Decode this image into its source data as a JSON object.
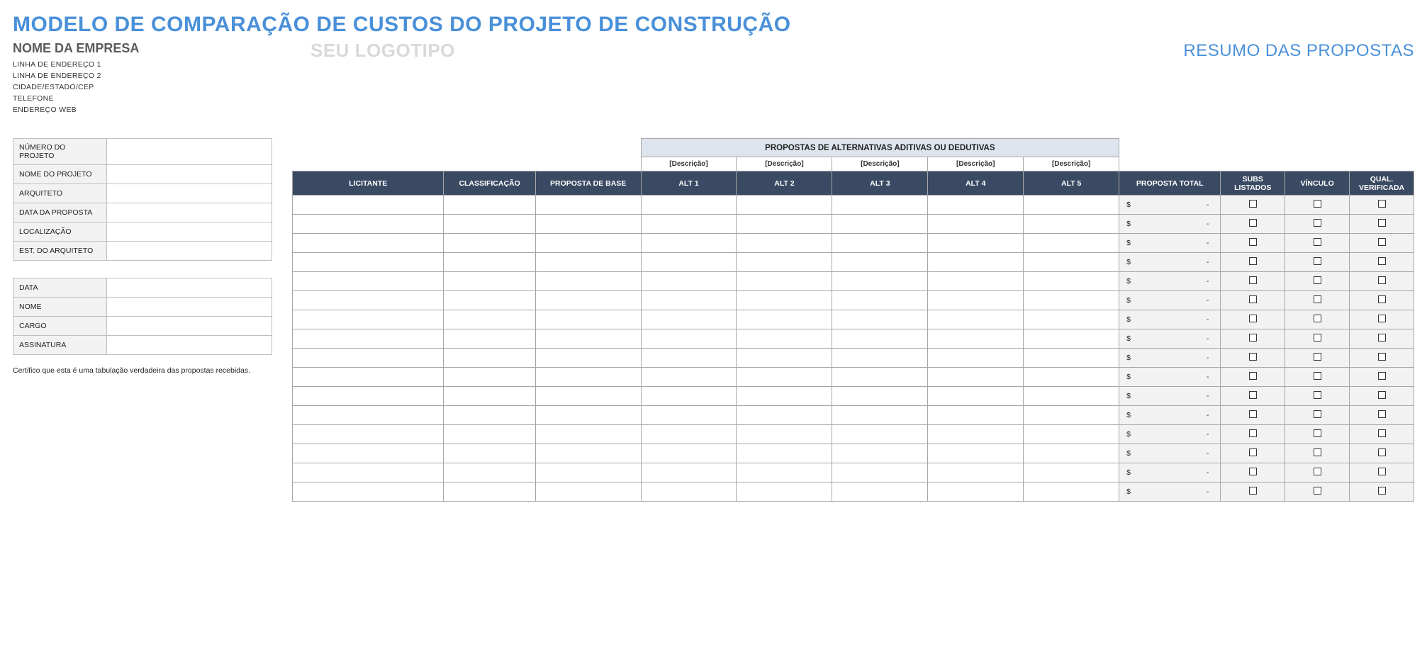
{
  "colors": {
    "accent": "#4a90d9",
    "header_dark": "#3b4a63",
    "alt_band": "#dde4ed",
    "grey_fill": "#f2f2f2",
    "logo_grey": "#d9d9d9",
    "border": "#a6a6a6"
  },
  "title": "MODELO DE COMPARAÇÃO DE CUSTOS DO PROJETO DE CONSTRUÇÃO",
  "company": {
    "name": "NOME DA EMPRESA",
    "addr1": "LINHA DE ENDEREÇO 1",
    "addr2": "LINHA DE ENDEREÇO 2",
    "city": "CIDADE/ESTADO/CEP",
    "phone": "TELEFONE",
    "web": "ENDEREÇO WEB"
  },
  "logo_placeholder": "SEU LOGOTIPO",
  "summary_title": "RESUMO DAS PROPOSTAS",
  "project_info": {
    "labels": {
      "num": "NÚMERO DO PROJETO",
      "name": "NOME DO PROJETO",
      "arch": "ARQUITETO",
      "date": "DATA DA PROPOSTA",
      "loc": "LOCALIZAÇÃO",
      "est": "EST. DO ARQUITETO"
    },
    "values": {
      "num": "",
      "name": "",
      "arch": "",
      "date": "",
      "loc": "",
      "est": ""
    }
  },
  "sign_info": {
    "labels": {
      "date": "DATA",
      "name": "NOME",
      "role": "CARGO",
      "sig": "ASSINATURA"
    },
    "values": {
      "date": "",
      "name": "",
      "role": "",
      "sig": ""
    }
  },
  "cert_text": "Certifico que esta é uma tabulação verdadeira das propostas recebidas.",
  "big_table": {
    "alt_band_title": "PROPOSTAS DE ALTERNATIVAS ADITIVAS OU DEDUTIVAS",
    "desc_placeholder": "[Descrição]",
    "headers": {
      "licitante": "LICITANTE",
      "class": "CLASSIFICAÇÃO",
      "base": "PROPOSTA DE BASE",
      "alt1": "ALT 1",
      "alt2": "ALT 2",
      "alt3": "ALT 3",
      "alt4": "ALT 4",
      "alt5": "ALT 5",
      "total": "PROPOSTA TOTAL",
      "subs": "SUBS LISTADOS",
      "vinc": "VÍNCULO",
      "qual": "QUAL. VERIFICADA"
    },
    "alt_descriptions": [
      "[Descrição]",
      "[Descrição]",
      "[Descrição]",
      "[Descrição]",
      "[Descrição]"
    ],
    "alt_count": 5,
    "row_count": 16,
    "total_cell": {
      "currency": "$",
      "value": "-"
    },
    "checkbox_value": false,
    "rows": [
      {
        "licitante": "",
        "class": "",
        "base": "",
        "alts": [
          "",
          "",
          "",
          "",
          ""
        ],
        "total": "-",
        "subs": false,
        "vinc": false,
        "qual": false
      },
      {
        "licitante": "",
        "class": "",
        "base": "",
        "alts": [
          "",
          "",
          "",
          "",
          ""
        ],
        "total": "-",
        "subs": false,
        "vinc": false,
        "qual": false
      },
      {
        "licitante": "",
        "class": "",
        "base": "",
        "alts": [
          "",
          "",
          "",
          "",
          ""
        ],
        "total": "-",
        "subs": false,
        "vinc": false,
        "qual": false
      },
      {
        "licitante": "",
        "class": "",
        "base": "",
        "alts": [
          "",
          "",
          "",
          "",
          ""
        ],
        "total": "-",
        "subs": false,
        "vinc": false,
        "qual": false
      },
      {
        "licitante": "",
        "class": "",
        "base": "",
        "alts": [
          "",
          "",
          "",
          "",
          ""
        ],
        "total": "-",
        "subs": false,
        "vinc": false,
        "qual": false
      },
      {
        "licitante": "",
        "class": "",
        "base": "",
        "alts": [
          "",
          "",
          "",
          "",
          ""
        ],
        "total": "-",
        "subs": false,
        "vinc": false,
        "qual": false
      },
      {
        "licitante": "",
        "class": "",
        "base": "",
        "alts": [
          "",
          "",
          "",
          "",
          ""
        ],
        "total": "-",
        "subs": false,
        "vinc": false,
        "qual": false
      },
      {
        "licitante": "",
        "class": "",
        "base": "",
        "alts": [
          "",
          "",
          "",
          "",
          ""
        ],
        "total": "-",
        "subs": false,
        "vinc": false,
        "qual": false
      },
      {
        "licitante": "",
        "class": "",
        "base": "",
        "alts": [
          "",
          "",
          "",
          "",
          ""
        ],
        "total": "-",
        "subs": false,
        "vinc": false,
        "qual": false
      },
      {
        "licitante": "",
        "class": "",
        "base": "",
        "alts": [
          "",
          "",
          "",
          "",
          ""
        ],
        "total": "-",
        "subs": false,
        "vinc": false,
        "qual": false
      },
      {
        "licitante": "",
        "class": "",
        "base": "",
        "alts": [
          "",
          "",
          "",
          "",
          ""
        ],
        "total": "-",
        "subs": false,
        "vinc": false,
        "qual": false
      },
      {
        "licitante": "",
        "class": "",
        "base": "",
        "alts": [
          "",
          "",
          "",
          "",
          ""
        ],
        "total": "-",
        "subs": false,
        "vinc": false,
        "qual": false
      },
      {
        "licitante": "",
        "class": "",
        "base": "",
        "alts": [
          "",
          "",
          "",
          "",
          ""
        ],
        "total": "-",
        "subs": false,
        "vinc": false,
        "qual": false
      },
      {
        "licitante": "",
        "class": "",
        "base": "",
        "alts": [
          "",
          "",
          "",
          "",
          ""
        ],
        "total": "-",
        "subs": false,
        "vinc": false,
        "qual": false
      },
      {
        "licitante": "",
        "class": "",
        "base": "",
        "alts": [
          "",
          "",
          "",
          "",
          ""
        ],
        "total": "-",
        "subs": false,
        "vinc": false,
        "qual": false
      },
      {
        "licitante": "",
        "class": "",
        "base": "",
        "alts": [
          "",
          "",
          "",
          "",
          ""
        ],
        "total": "-",
        "subs": false,
        "vinc": false,
        "qual": false
      }
    ]
  }
}
